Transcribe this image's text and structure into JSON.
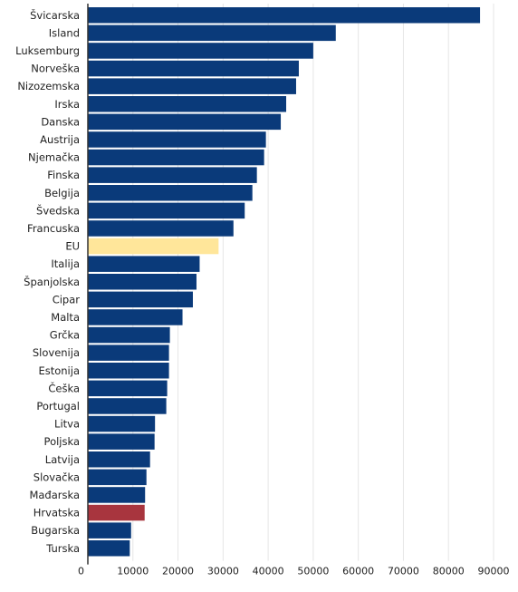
{
  "chart_data": {
    "type": "bar",
    "orientation": "horizontal",
    "title": "",
    "xlabel": "",
    "ylabel": "",
    "xlim": [
      0,
      90000
    ],
    "xticks": [
      0,
      10000,
      20000,
      30000,
      40000,
      50000,
      60000,
      70000,
      80000,
      90000
    ],
    "grid": true,
    "legend": "none",
    "colors": {
      "default": "#0a3a7a",
      "EU": "#ffe69a",
      "Hrvatska": "#a8353e"
    },
    "categories": [
      "Švicarska",
      "Island",
      "Luksemburg",
      "Norveška",
      "Nizozemska",
      "Irska",
      "Danska",
      "Austrija",
      "Njemačka",
      "Finska",
      "Belgija",
      "Švedska",
      "Francuska",
      "EU",
      "Italija",
      "Španjolska",
      "Cipar",
      "Malta",
      "Grčka",
      "Slovenija",
      "Estonija",
      "Češka",
      "Portugal",
      "Litva",
      "Poljska",
      "Latvija",
      "Slovačka",
      "Mađarska",
      "Hrvatska",
      "Bugarska",
      "Turska"
    ],
    "values": [
      87000,
      55000,
      50000,
      46800,
      46200,
      44000,
      42800,
      39500,
      39100,
      37500,
      36500,
      34800,
      32300,
      29000,
      24800,
      24100,
      23300,
      21000,
      18200,
      18000,
      18000,
      17600,
      17400,
      14900,
      14800,
      13800,
      13000,
      12700,
      12600,
      9600,
      9300
    ]
  }
}
